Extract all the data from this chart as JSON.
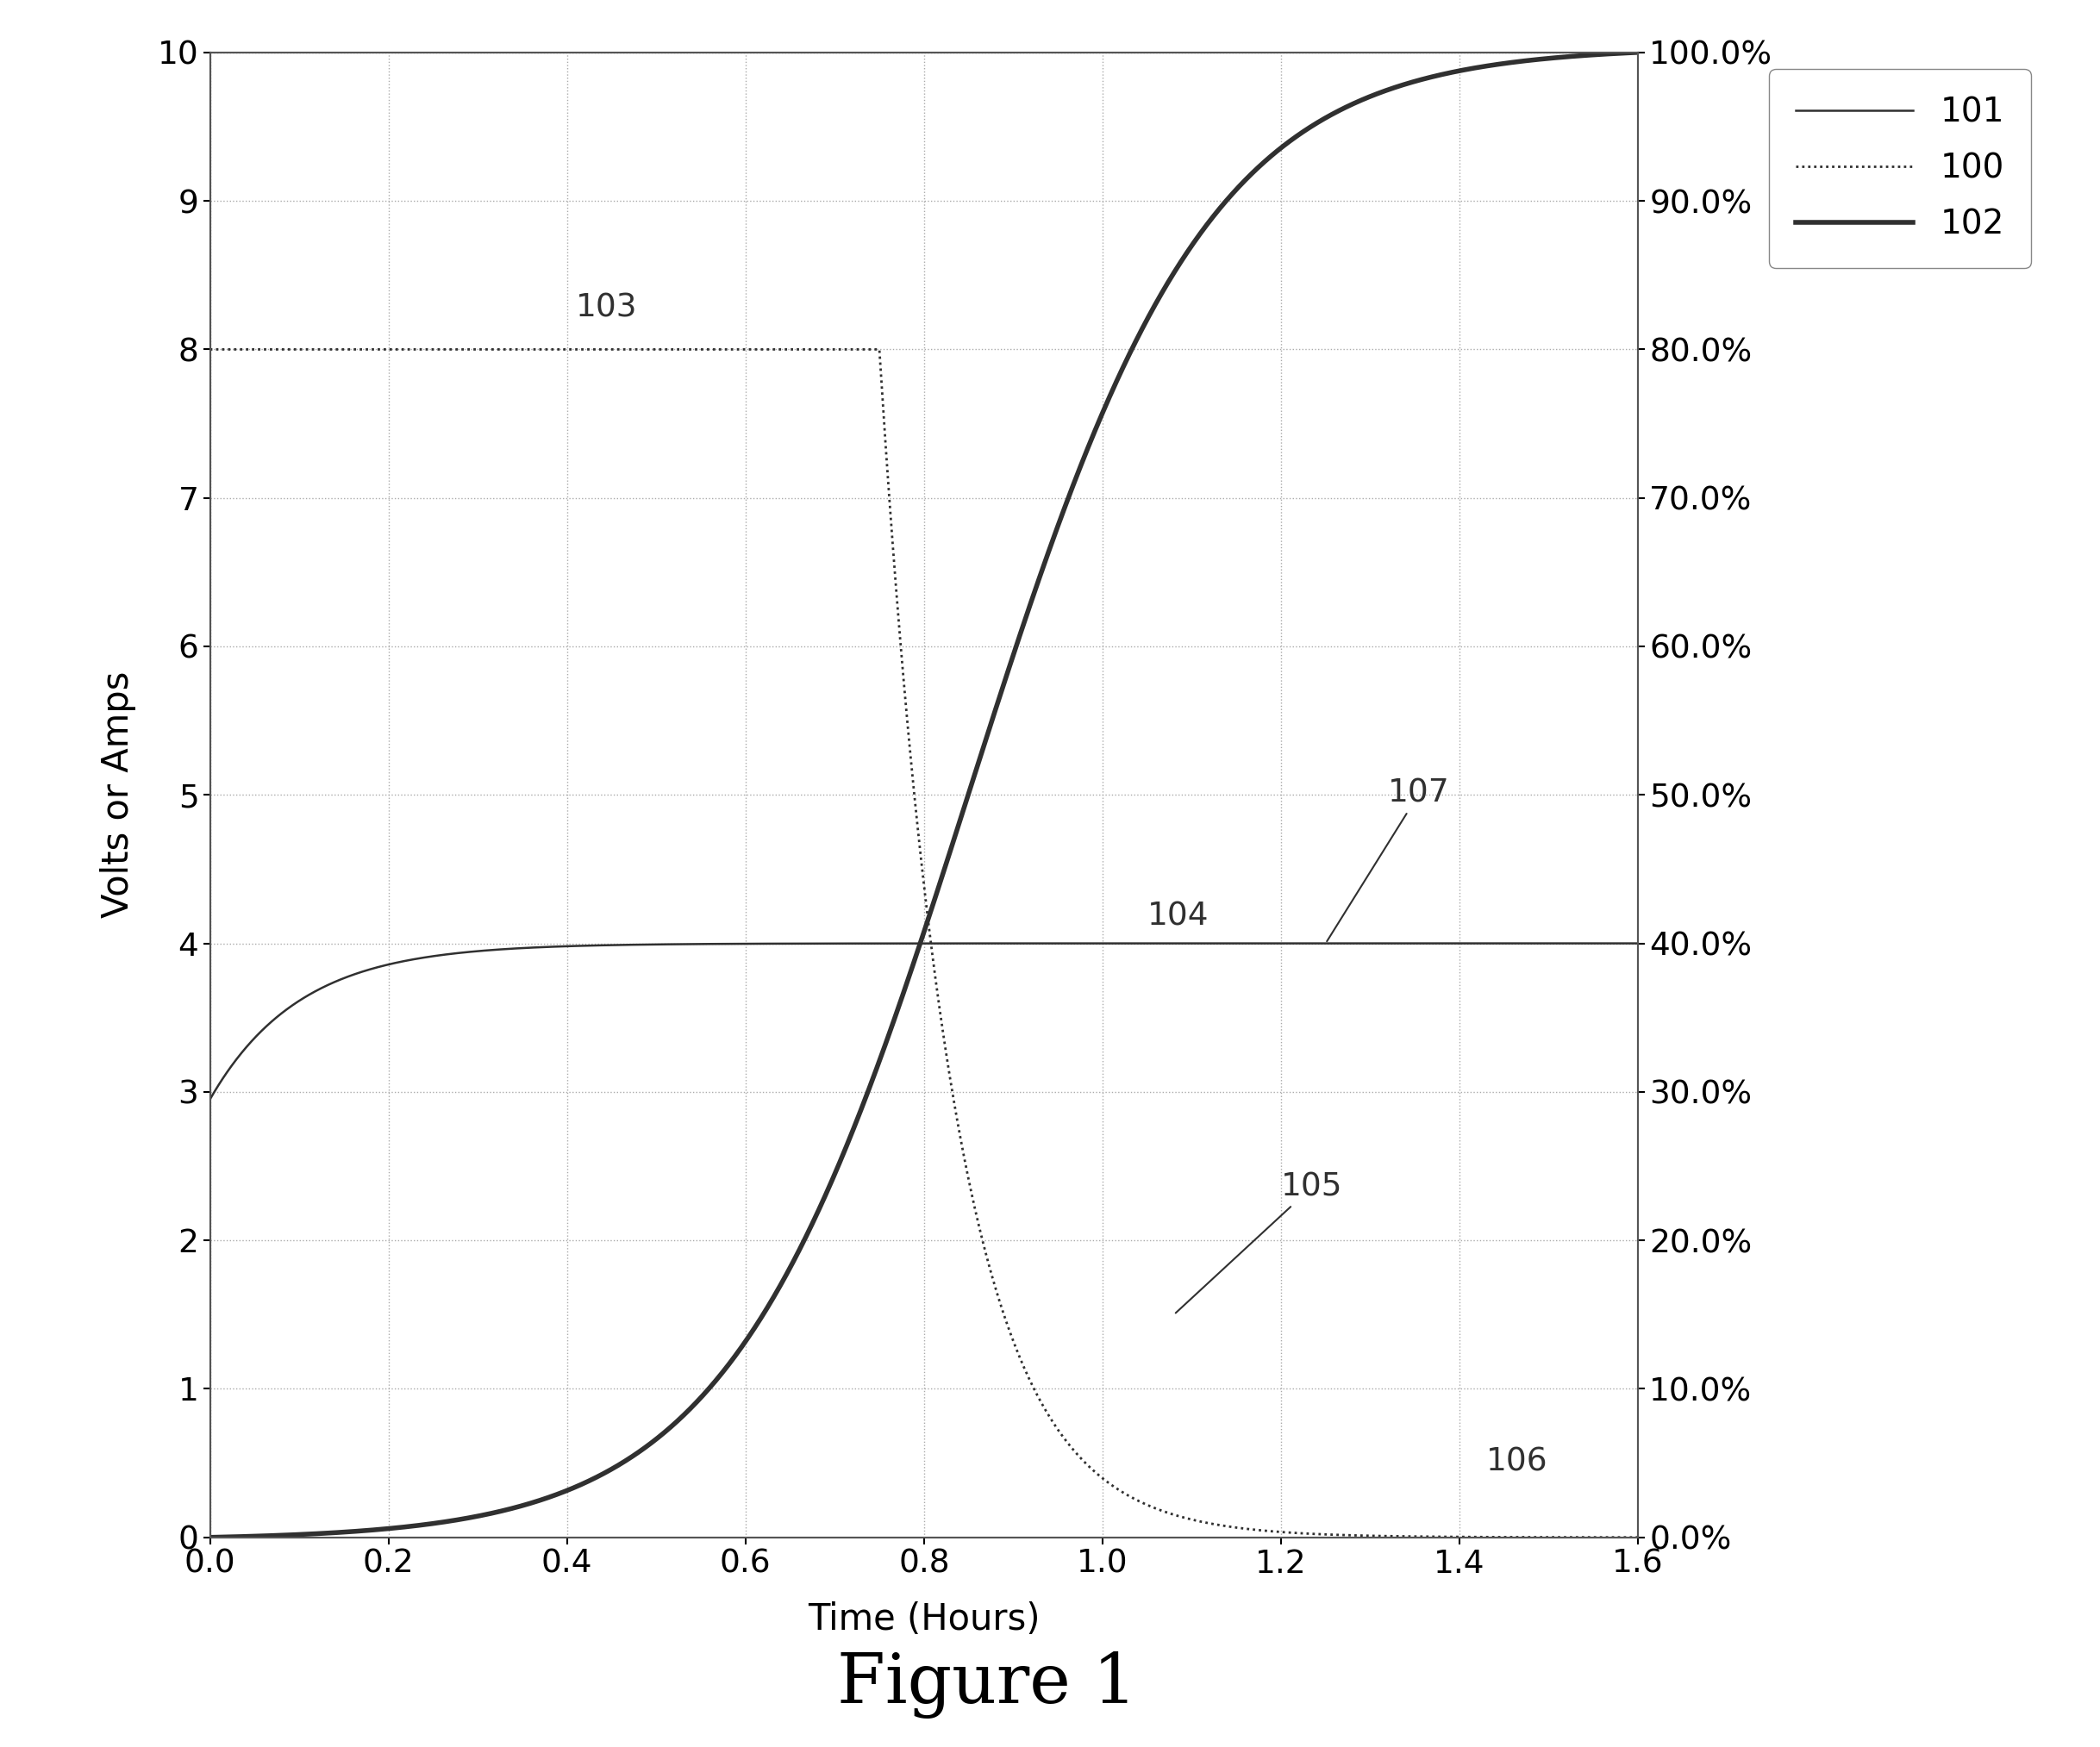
{
  "title": "Figure 1",
  "xlabel": "Time (Hours)",
  "ylabel": "Volts or Amps",
  "xlim": [
    0,
    1.6
  ],
  "ylim_left": [
    0,
    10
  ],
  "ylim_right": [
    0,
    1.0
  ],
  "xticks": [
    0,
    0.2,
    0.4,
    0.6,
    0.8,
    1.0,
    1.2,
    1.4,
    1.6
  ],
  "yticks_left": [
    0,
    1,
    2,
    3,
    4,
    5,
    6,
    7,
    8,
    9,
    10
  ],
  "yticks_right": [
    0.0,
    0.1,
    0.2,
    0.3,
    0.4,
    0.5,
    0.6,
    0.7,
    0.8,
    0.9,
    1.0
  ],
  "legend_labels": [
    "101",
    "100",
    "102"
  ],
  "background_color": "#ffffff",
  "line_color": "#303030",
  "grid_color": "#aaaaaa"
}
